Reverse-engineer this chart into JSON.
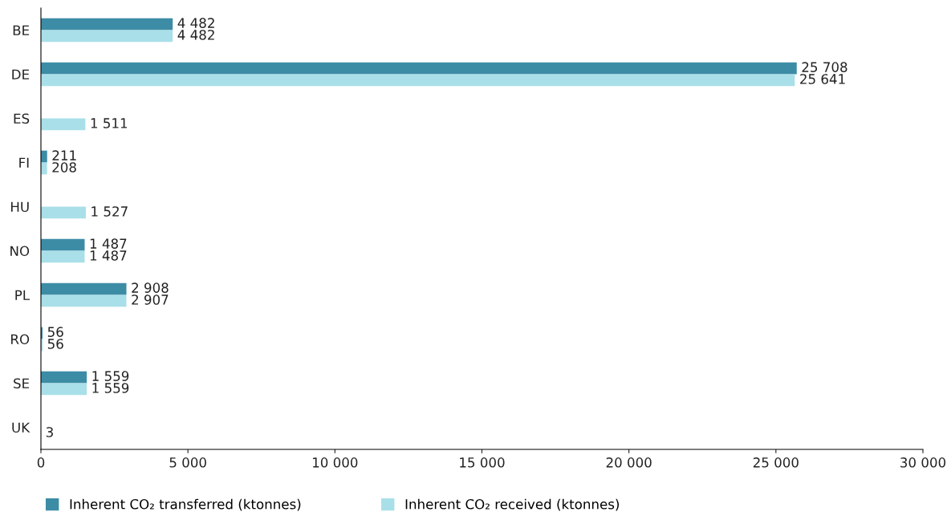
{
  "chart_data": {
    "type": "bar",
    "orientation": "horizontal",
    "categories": [
      "BE",
      "DE",
      "ES",
      "FI",
      "HU",
      "NO",
      "PL",
      "RO",
      "SE",
      "UK"
    ],
    "series": [
      {
        "name": "Inherent CO₂ transferred (ktonnes)",
        "color": "#3d8ca6",
        "values": [
          4482,
          25708,
          null,
          211,
          null,
          1487,
          2908,
          56,
          1559,
          null
        ],
        "value_labels": [
          "4 482",
          "25 708",
          null,
          "211",
          null,
          "1 487",
          "2 908",
          "56",
          "1 559",
          null
        ]
      },
      {
        "name": "Inherent CO₂ received (ktonnes)",
        "color": "#a9dfe8",
        "values": [
          4482,
          25641,
          1511,
          208,
          1527,
          1487,
          2907,
          56,
          1559,
          3
        ],
        "value_labels": [
          "4 482",
          "25 641",
          "1 511",
          "208",
          "1 527",
          "1 487",
          "2 907",
          "56",
          "1 559",
          "3"
        ]
      }
    ],
    "xlim": [
      0,
      30000
    ],
    "xticks": [
      0,
      {
        "value": 5000,
        "label": "5 000"
      },
      {
        "value": 10000,
        "label": "10 000"
      },
      {
        "value": 15000,
        "label": "15 000"
      },
      {
        "value": 20000,
        "label": "20 000"
      },
      {
        "value": 25000,
        "label": "25 000"
      },
      {
        "value": 30000,
        "label": "30 000"
      }
    ],
    "grid": false,
    "legend": "bottom"
  }
}
